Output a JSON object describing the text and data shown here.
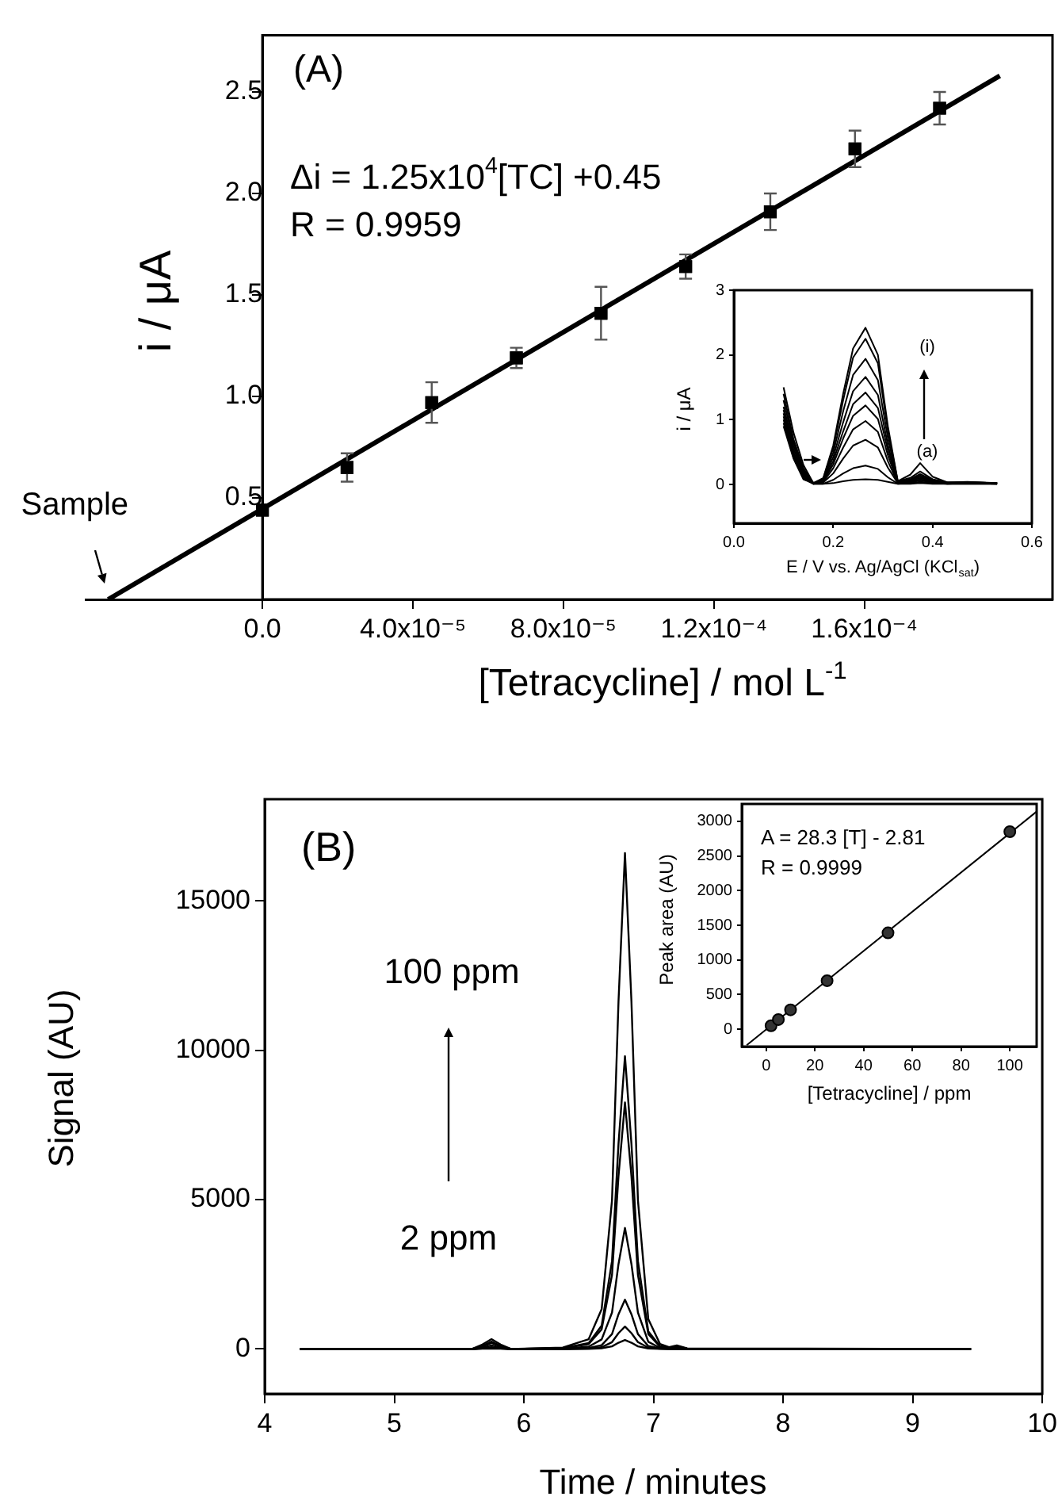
{
  "chart_data": [
    {
      "type": "scatter",
      "xlabel": "[Tetracycline] / mol L$^{-1}$",
      "ylabel": "i / μA",
      "xlim": [
        -4.7e-05,
        0.00021
      ],
      "ylim": [
        0,
        2.78
      ],
      "xticks": [
        {
          "value": 0,
          "label": "0.0"
        },
        {
          "value": 4e-05,
          "label": "4.0x10⁻⁵"
        },
        {
          "value": 8e-05,
          "label": "8.0x10⁻⁵"
        },
        {
          "value": 0.00012,
          "label": "1.2x10⁻⁴"
        },
        {
          "value": 0.00016,
          "label": "1.6x10⁻⁴"
        }
      ],
      "yticks": [
        0.5,
        {
          "value": 1,
          "label": "1.0"
        },
        1.5,
        {
          "value": 2,
          "label": "2.0"
        },
        2.5
      ],
      "series": [
        {
          "type": "scatter",
          "marker": "square",
          "color": "#000000",
          "x": [
            0,
            2.25e-05,
            4.5e-05,
            6.75e-05,
            9e-05,
            0.0001125,
            0.000135,
            0.0001575,
            0.00018
          ],
          "values": [
            0.44,
            0.65,
            0.97,
            1.19,
            1.41,
            1.64,
            1.91,
            2.22,
            2.42
          ],
          "errors": [
            null,
            0.07,
            0.1,
            0.05,
            0.13,
            0.06,
            0.09,
            0.09,
            0.08
          ]
        },
        {
          "type": "line",
          "color": "#000000",
          "x": [
            -4.1e-05,
            0.000196
          ],
          "values": [
            0,
            2.58
          ]
        }
      ],
      "annotations": [
        "(A)",
        "Δi = 1.25x10$^{4}$[TC] +0.45",
        "R = 0.9959",
        {
          "text": "Sample",
          "x": -4.1e-05,
          "y": 0
        }
      ]
    },
    {
      "type": "line",
      "xlabel": "E / V vs. Ag/AgCl (KCl$_{sat}$)",
      "ylabel": "i / μA",
      "xlim": [
        0,
        0.6
      ],
      "ylim": [
        -0.6,
        3
      ],
      "xticks": [
        {
          "value": 0,
          "label": "0.0"
        },
        0.2,
        0.4,
        0.6
      ],
      "yticks": [
        0,
        1,
        2,
        3
      ],
      "x": [
        0.1,
        0.12,
        0.14,
        0.16,
        0.18,
        0.2,
        0.22,
        0.24,
        0.265,
        0.29,
        0.31,
        0.33,
        0.355,
        0.375,
        0.4,
        0.43,
        0.47,
        0.53
      ],
      "series": [
        {
          "color": "#000000",
          "values": [
            1.5,
            0.8,
            0.3,
            0.02,
            0.1,
            0.6,
            1.4,
            2.1,
            2.42,
            2.0,
            0.9,
            0.05,
            0.15,
            0.33,
            0.12,
            0.03,
            0.04,
            0.02
          ]
        },
        {
          "color": "#000000",
          "values": [
            1.4,
            0.7,
            0.25,
            0.02,
            0.09,
            0.56,
            1.3,
            1.96,
            2.25,
            1.87,
            0.83,
            0.05,
            0.1,
            0.2,
            0.08,
            0.03,
            0.03,
            0.02
          ]
        },
        {
          "color": "#000000",
          "values": [
            1.3,
            0.65,
            0.22,
            0.02,
            0.08,
            0.49,
            1.13,
            1.69,
            1.94,
            1.61,
            0.72,
            0.04,
            0.08,
            0.16,
            0.07,
            0.03,
            0.03,
            0.02
          ]
        },
        {
          "color": "#000000",
          "values": [
            1.2,
            0.6,
            0.2,
            0.02,
            0.07,
            0.42,
            0.96,
            1.44,
            1.66,
            1.38,
            0.61,
            0.04,
            0.07,
            0.14,
            0.06,
            0.02,
            0.03,
            0.02
          ]
        },
        {
          "color": "#000000",
          "values": [
            1.15,
            0.55,
            0.18,
            0.02,
            0.06,
            0.36,
            0.82,
            1.24,
            1.42,
            1.18,
            0.53,
            0.03,
            0.06,
            0.12,
            0.05,
            0.02,
            0.03,
            0.02
          ]
        },
        {
          "color": "#000000",
          "values": [
            1.1,
            0.5,
            0.16,
            0.02,
            0.05,
            0.31,
            0.71,
            1.06,
            1.22,
            1.01,
            0.45,
            0.03,
            0.05,
            0.1,
            0.05,
            0.02,
            0.02,
            0.02
          ]
        },
        {
          "color": "#000000",
          "values": [
            1.05,
            0.48,
            0.14,
            0.01,
            0.04,
            0.25,
            0.57,
            0.85,
            0.98,
            0.81,
            0.36,
            0.02,
            0.04,
            0.08,
            0.04,
            0.02,
            0.02,
            0.01
          ]
        },
        {
          "color": "#000000",
          "values": [
            1.0,
            0.45,
            0.12,
            0.01,
            0.03,
            0.17,
            0.4,
            0.6,
            0.69,
            0.57,
            0.26,
            0.02,
            0.03,
            0.06,
            0.03,
            0.01,
            0.02,
            0.01
          ]
        },
        {
          "color": "#000000",
          "values": [
            0.95,
            0.42,
            0.1,
            0.01,
            0.01,
            0.07,
            0.17,
            0.25,
            0.29,
            0.24,
            0.11,
            0.01,
            0.02,
            0.04,
            0.02,
            0.01,
            0.01,
            0.01
          ]
        },
        {
          "color": "#000000",
          "values": [
            0.9,
            0.4,
            0.08,
            0.01,
            0.01,
            0.02,
            0.05,
            0.07,
            0.08,
            0.07,
            0.04,
            0.01,
            0.01,
            0.02,
            0.01,
            0.01,
            0.01,
            0.01
          ]
        }
      ],
      "annotations": [
        "(i)",
        "(a)"
      ]
    },
    {
      "type": "line",
      "xlabel": "Time / minutes",
      "ylabel": "Signal (AU)",
      "xlim": [
        4,
        10
      ],
      "ylim": [
        -1500,
        18400
      ],
      "xticks": [
        4,
        5,
        6,
        7,
        8,
        9,
        10
      ],
      "yticks": [
        0,
        5000,
        10000,
        15000
      ],
      "x": [
        4.27,
        5.6,
        5.68,
        5.75,
        5.82,
        5.9,
        6.3,
        6.5,
        6.6,
        6.68,
        6.73,
        6.78,
        6.83,
        6.88,
        6.96,
        7.05,
        7.12,
        7.18,
        7.26,
        9.45
      ],
      "series": [
        {
          "color": "#000000",
          "values": [
            0,
            0,
            150,
            330,
            150,
            0,
            50,
            330,
            1330,
            4980,
            11620,
            16600,
            11620,
            4980,
            1000,
            170,
            60,
            120,
            20,
            0
          ]
        },
        {
          "color": "#000000",
          "values": [
            0,
            0,
            100,
            250,
            100,
            0,
            30,
            200,
            780,
            2940,
            6860,
            9800,
            6860,
            2940,
            590,
            100,
            40,
            90,
            15,
            0
          ]
        },
        {
          "color": "#000000",
          "values": [
            0,
            0,
            80,
            200,
            80,
            0,
            25,
            165,
            660,
            2480,
            5780,
            8250,
            5780,
            2480,
            500,
            80,
            30,
            70,
            10,
            0
          ]
        },
        {
          "color": "#000000",
          "values": [
            0,
            0,
            50,
            120,
            50,
            0,
            10,
            80,
            320,
            1220,
            2840,
            4050,
            2840,
            1220,
            240,
            40,
            20,
            40,
            5,
            0
          ]
        },
        {
          "color": "#000000",
          "values": [
            0,
            0,
            30,
            60,
            30,
            0,
            5,
            35,
            130,
            500,
            1160,
            1650,
            1160,
            500,
            100,
            20,
            10,
            20,
            0,
            0
          ]
        },
        {
          "color": "#000000",
          "values": [
            0,
            0,
            20,
            40,
            20,
            0,
            0,
            15,
            60,
            230,
            530,
            750,
            530,
            230,
            45,
            10,
            5,
            10,
            0,
            0
          ]
        },
        {
          "color": "#000000",
          "values": [
            0,
            0,
            10,
            20,
            10,
            0,
            0,
            6,
            24,
            90,
            210,
            300,
            210,
            90,
            20,
            5,
            0,
            5,
            0,
            0
          ]
        }
      ],
      "annotations": [
        "(B)",
        "100 ppm",
        "2 ppm"
      ]
    },
    {
      "type": "scatter",
      "xlabel": "[Tetracycline] / ppm",
      "ylabel": "Peak area (AU)",
      "xlim": [
        -10,
        111
      ],
      "ylim": [
        -250,
        3250
      ],
      "xticks": [
        0,
        20,
        40,
        60,
        80,
        100
      ],
      "yticks": [
        0,
        500,
        1000,
        1500,
        2000,
        2500,
        3000
      ],
      "series": [
        {
          "type": "scatter",
          "marker": "circle",
          "color": "#333333",
          "x": [
            2,
            5,
            10,
            25,
            50,
            100
          ],
          "values": [
            50,
            140,
            280,
            700,
            1390,
            2850
          ]
        },
        {
          "type": "line",
          "color": "#000000",
          "x": [
            -8,
            111
          ],
          "values": [
            -230,
            3140
          ]
        }
      ],
      "annotations": [
        "A = 28.3 [T] - 2.81",
        "R = 0.9999"
      ]
    }
  ]
}
